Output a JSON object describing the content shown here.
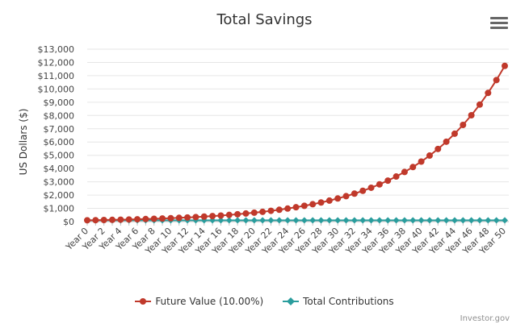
{
  "chart_data": {
    "type": "line",
    "title": "Total Savings",
    "xlabel": "",
    "ylabel": "US Dollars ($)",
    "ylim": [
      0,
      13000
    ],
    "yticks": [
      0,
      1000,
      2000,
      3000,
      4000,
      5000,
      6000,
      7000,
      8000,
      9000,
      10000,
      11000,
      12000,
      13000
    ],
    "ytick_labels": [
      "$0",
      "$1,000",
      "$2,000",
      "$3,000",
      "$4,000",
      "$5,000",
      "$6,000",
      "$7,000",
      "$8,000",
      "$9,000",
      "$10,000",
      "$11,000",
      "$12,000",
      "$13,000"
    ],
    "categories": [
      "Year 0",
      "Year 1",
      "Year 2",
      "Year 3",
      "Year 4",
      "Year 5",
      "Year 6",
      "Year 7",
      "Year 8",
      "Year 9",
      "Year 10",
      "Year 11",
      "Year 12",
      "Year 13",
      "Year 14",
      "Year 15",
      "Year 16",
      "Year 17",
      "Year 18",
      "Year 19",
      "Year 20",
      "Year 21",
      "Year 22",
      "Year 23",
      "Year 24",
      "Year 25",
      "Year 26",
      "Year 27",
      "Year 28",
      "Year 29",
      "Year 30",
      "Year 31",
      "Year 32",
      "Year 33",
      "Year 34",
      "Year 35",
      "Year 36",
      "Year 37",
      "Year 38",
      "Year 39",
      "Year 40",
      "Year 41",
      "Year 42",
      "Year 43",
      "Year 44",
      "Year 45",
      "Year 46",
      "Year 47",
      "Year 48",
      "Year 49",
      "Year 50"
    ],
    "shown_tick_labels": [
      "Year 0",
      "Year 2",
      "Year 4",
      "Year 6",
      "Year 8",
      "Year 10",
      "Year 12",
      "Year 14",
      "Year 16",
      "Year 18",
      "Year 20",
      "Year 22",
      "Year 24",
      "Year 26",
      "Year 28",
      "Year 30",
      "Year 32",
      "Year 34",
      "Year 36",
      "Year 38",
      "Year 40",
      "Year 42",
      "Year 44",
      "Year 46",
      "Year 48",
      "Year 50"
    ],
    "grid": true,
    "legend_position": "bottom-center",
    "series": [
      {
        "name": "Future Value (10.00%)",
        "color": "#c0392b",
        "marker": "circle",
        "values": [
          100,
          110,
          121,
          133,
          146,
          161,
          177,
          195,
          214,
          236,
          259,
          285,
          314,
          345,
          380,
          418,
          459,
          505,
          556,
          612,
          673,
          740,
          814,
          895,
          985,
          1083,
          1192,
          1311,
          1442,
          1586,
          1745,
          1919,
          2111,
          2323,
          2555,
          2810,
          3091,
          3400,
          3740,
          4114,
          4526,
          4979,
          5476,
          6024,
          6626,
          7289,
          8018,
          8820,
          9702,
          10672,
          11739
        ]
      },
      {
        "name": "Total Contributions",
        "color": "#2a9d9d",
        "marker": "diamond",
        "values": [
          100,
          100,
          100,
          100,
          100,
          100,
          100,
          100,
          100,
          100,
          100,
          100,
          100,
          100,
          100,
          100,
          100,
          100,
          100,
          100,
          100,
          100,
          100,
          100,
          100,
          100,
          100,
          100,
          100,
          100,
          100,
          100,
          100,
          100,
          100,
          100,
          100,
          100,
          100,
          100,
          100,
          100,
          100,
          100,
          100,
          100,
          100,
          100,
          100,
          100,
          100
        ]
      }
    ]
  },
  "ui": {
    "menu_icon": "hamburger-menu-icon",
    "credit": "Investor.gov"
  }
}
